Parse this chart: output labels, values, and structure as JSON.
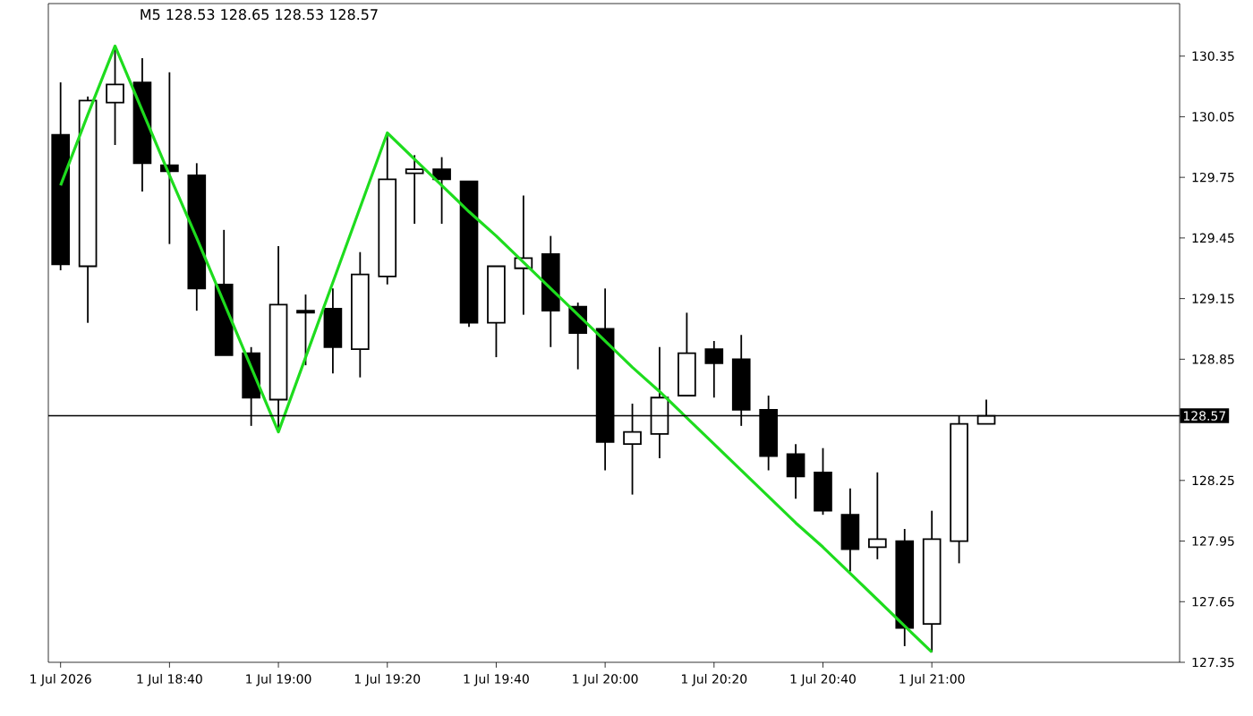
{
  "chart_data": {
    "type": "candlestick",
    "title": "M5  128.53 128.65 128.53 128.57",
    "categories": [
      "1 Jul 2026",
      null,
      null,
      null,
      "1 Jul 18:40",
      null,
      null,
      null,
      "1 Jul 19:00",
      null,
      null,
      null,
      "1 Jul 19:20",
      null,
      null,
      null,
      "1 Jul 19:40",
      null,
      null,
      null,
      "1 Jul 20:00",
      null,
      null,
      null,
      "1 Jul 20:20",
      null,
      null,
      null,
      "1 Jul 20:40",
      null,
      null,
      null,
      "1 Jul 21:00",
      null,
      null
    ],
    "ylim": [
      127.35,
      130.61
    ],
    "yticks": [
      127.35,
      127.65,
      127.95,
      128.25,
      128.85,
      129.15,
      129.45,
      129.75,
      130.05,
      130.35
    ],
    "ref_lines": [
      {
        "axis": "y",
        "value": 128.57,
        "label": "128.57",
        "color": "#000000"
      }
    ],
    "series": [
      {
        "color": "#000000",
        "ohlc": [
          [
            129.96,
            130.22,
            129.29,
            129.32
          ],
          [
            129.31,
            130.15,
            129.03,
            130.13
          ],
          [
            130.12,
            130.4,
            129.91,
            130.21
          ],
          [
            130.22,
            130.34,
            129.68,
            129.82
          ],
          [
            129.81,
            130.27,
            129.42,
            129.78
          ],
          [
            129.76,
            129.82,
            129.09,
            129.2
          ],
          [
            129.22,
            129.49,
            128.87,
            128.87
          ],
          [
            128.88,
            128.91,
            128.52,
            128.66
          ],
          [
            128.65,
            129.41,
            128.49,
            129.12
          ],
          [
            129.09,
            129.17,
            128.82,
            129.08
          ],
          [
            129.1,
            129.2,
            128.78,
            128.91
          ],
          [
            128.9,
            129.38,
            128.76,
            129.27
          ],
          [
            129.26,
            129.97,
            129.22,
            129.74
          ],
          [
            129.77,
            129.86,
            129.52,
            129.79
          ],
          [
            129.79,
            129.85,
            129.52,
            129.74
          ],
          [
            129.73,
            129.73,
            129.01,
            129.03
          ],
          [
            129.03,
            129.31,
            128.86,
            129.31
          ],
          [
            129.3,
            129.66,
            129.07,
            129.35
          ],
          [
            129.37,
            129.46,
            128.91,
            129.09
          ],
          [
            129.11,
            129.13,
            128.8,
            128.98
          ],
          [
            129.0,
            129.2,
            128.3,
            128.44
          ],
          [
            128.43,
            128.63,
            128.18,
            128.49
          ],
          [
            128.48,
            128.91,
            128.36,
            128.66
          ],
          [
            128.67,
            129.08,
            128.67,
            128.88
          ],
          [
            128.9,
            128.94,
            128.66,
            128.83
          ],
          [
            128.85,
            128.97,
            128.52,
            128.6
          ],
          [
            128.6,
            128.67,
            128.3,
            128.37
          ],
          [
            128.38,
            128.43,
            128.16,
            128.27
          ],
          [
            128.29,
            128.41,
            128.08,
            128.1
          ],
          [
            128.08,
            128.21,
            127.8,
            127.91
          ],
          [
            127.92,
            128.29,
            127.86,
            127.96
          ],
          [
            127.95,
            128.01,
            127.43,
            127.52
          ],
          [
            127.54,
            128.1,
            127.4,
            127.96
          ],
          [
            127.95,
            128.57,
            127.84,
            128.53
          ],
          [
            128.53,
            128.65,
            128.53,
            128.57
          ]
        ]
      },
      {
        "type": "line",
        "color": "#1edc1e",
        "values": [
          129.71,
          130.06,
          130.4,
          130.08,
          129.76,
          129.45,
          129.13,
          128.81,
          128.49,
          128.86,
          129.23,
          129.6,
          129.97,
          129.84,
          129.71,
          129.58,
          129.46,
          129.33,
          129.2,
          129.07,
          128.94,
          128.81,
          128.69,
          128.56,
          128.43,
          128.3,
          128.17,
          128.04,
          127.92,
          127.79,
          127.66,
          127.53,
          127.4,
          null,
          null
        ]
      }
    ]
  }
}
